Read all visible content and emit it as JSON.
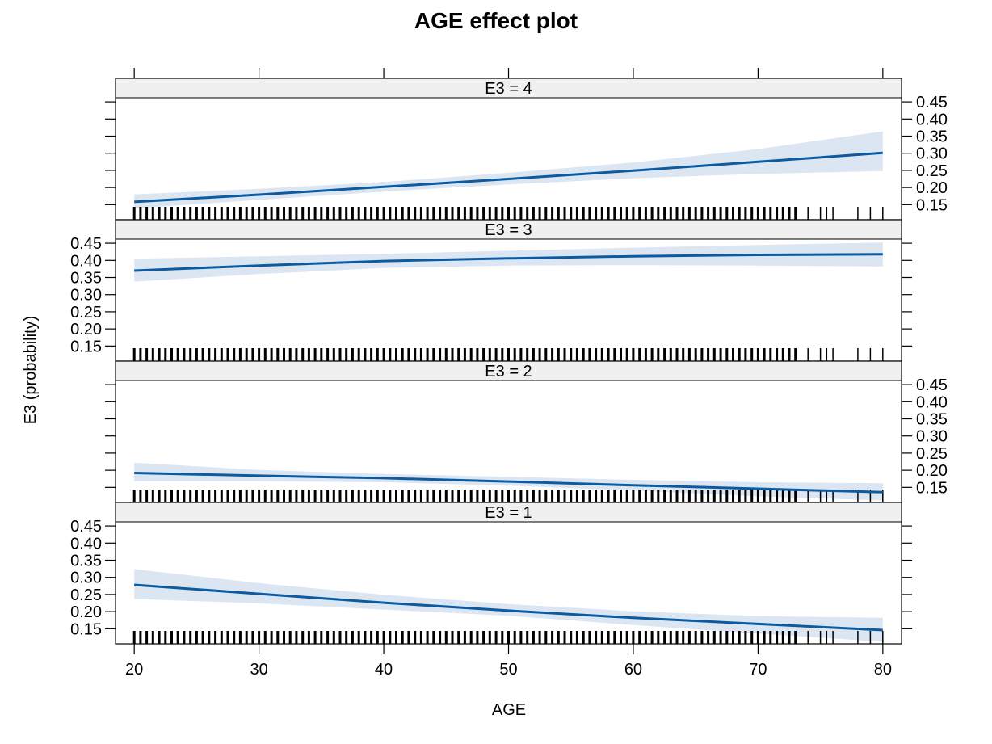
{
  "chart_data": {
    "type": "line",
    "title": "AGE effect plot",
    "xlabel": "AGE",
    "ylabel": "E3 (probability)",
    "xlim": [
      18.5,
      81.5
    ],
    "ylim": [
      0.106,
      0.462
    ],
    "x_ticks": [
      20,
      30,
      40,
      50,
      60,
      70,
      80
    ],
    "y_ticks": [
      0.15,
      0.2,
      0.25,
      0.3,
      0.35,
      0.4,
      0.45
    ],
    "y_tick_labels": [
      "0.15",
      "0.20",
      "0.25",
      "0.30",
      "0.35",
      "0.40",
      "0.45"
    ],
    "colors": {
      "line": "#0c5aa0",
      "band": "#dbe6f2",
      "strip": "#f0f0f0",
      "axis": "#000000"
    },
    "x": [
      20,
      30,
      40,
      50,
      60,
      70,
      80
    ],
    "panels": [
      {
        "label": "E3 = 4",
        "fit": [
          0.158,
          0.179,
          0.202,
          0.225,
          0.249,
          0.275,
          0.301
        ],
        "lower": [
          0.139,
          0.164,
          0.188,
          0.209,
          0.227,
          0.24,
          0.248
        ],
        "upper": [
          0.18,
          0.196,
          0.216,
          0.243,
          0.273,
          0.312,
          0.364
        ]
      },
      {
        "label": "E3 = 3",
        "fit": [
          0.37,
          0.385,
          0.398,
          0.406,
          0.412,
          0.416,
          0.418
        ],
        "lower": [
          0.338,
          0.36,
          0.378,
          0.385,
          0.386,
          0.385,
          0.382
        ],
        "upper": [
          0.405,
          0.412,
          0.419,
          0.428,
          0.437,
          0.445,
          0.452
        ]
      },
      {
        "label": "E3 = 2",
        "fit": [
          0.192,
          0.184,
          0.177,
          0.167,
          0.156,
          0.146,
          0.136
        ],
        "lower": [
          0.168,
          0.168,
          0.165,
          0.155,
          0.141,
          0.124,
          0.112
        ],
        "upper": [
          0.222,
          0.201,
          0.189,
          0.181,
          0.172,
          0.165,
          0.162
        ]
      },
      {
        "label": "E3 = 1",
        "fit": [
          0.278,
          0.252,
          0.226,
          0.203,
          0.182,
          0.164,
          0.146
        ],
        "lower": [
          0.237,
          0.224,
          0.206,
          0.188,
          0.161,
          0.136,
          0.112
        ],
        "upper": [
          0.324,
          0.283,
          0.249,
          0.222,
          0.201,
          0.187,
          0.182
        ]
      }
    ],
    "rug_x": [
      20,
      20.5,
      21,
      21.5,
      22,
      22.5,
      23,
      23.5,
      24,
      24.5,
      25,
      25.5,
      26,
      26.5,
      27,
      27.5,
      28,
      28.5,
      29,
      29.5,
      30,
      30.5,
      31,
      31.5,
      32,
      32.5,
      33,
      33.5,
      34,
      34.5,
      35,
      35.5,
      36,
      36.5,
      37,
      37.5,
      38,
      38.5,
      39,
      39.5,
      40,
      40.5,
      41,
      41.5,
      42,
      42.5,
      43,
      43.5,
      44,
      44.5,
      45,
      45.5,
      46,
      46.5,
      47,
      47.5,
      48,
      48.5,
      49,
      49.5,
      50,
      50.5,
      51,
      51.5,
      52,
      52.5,
      53,
      53.5,
      54,
      54.5,
      55,
      55.5,
      56,
      56.5,
      57,
      57.5,
      58,
      58.5,
      59,
      59.5,
      60,
      60.5,
      61,
      61.5,
      62,
      62.5,
      63,
      63.5,
      64,
      64.5,
      65,
      65.5,
      66,
      66.5,
      67,
      67.5,
      68,
      68.5,
      69,
      69.5,
      70,
      70.5,
      71,
      71.5,
      72,
      72.5,
      73,
      74,
      75,
      75.5,
      76,
      78,
      79,
      80
    ]
  }
}
